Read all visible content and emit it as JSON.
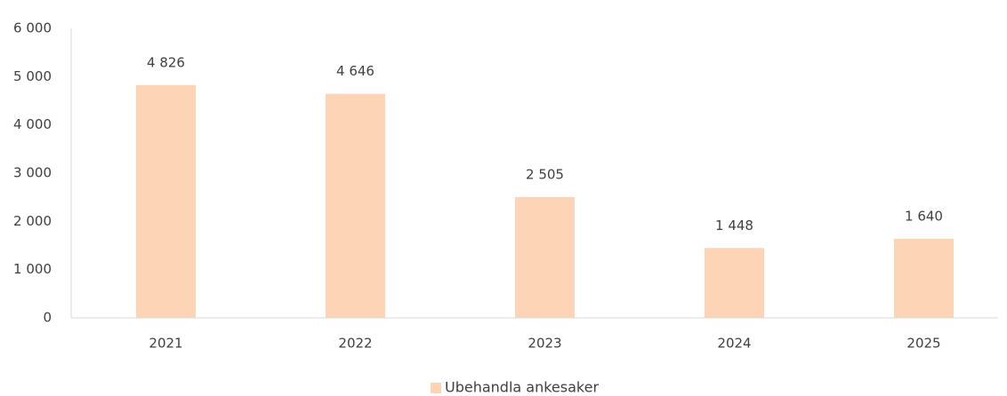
{
  "chart_data": {
    "type": "bar",
    "categories": [
      "2021",
      "2022",
      "2023",
      "2024",
      "2025"
    ],
    "series": [
      {
        "name": "Ubehandla ankesaker",
        "color": "#fdd5b6",
        "values": [
          4826,
          4646,
          2505,
          1448,
          1640
        ],
        "value_labels": [
          "4 826",
          "4 646",
          "2 505",
          "1 448",
          "1 640"
        ]
      }
    ],
    "ylim": [
      0,
      6000
    ],
    "yticks": [
      0,
      {
        "value": 1000,
        "label": "1 000"
      },
      {
        "value": 2000,
        "label": "2 000"
      },
      {
        "value": 3000,
        "label": "3 000"
      },
      {
        "value": 4000,
        "label": "4 000"
      },
      {
        "value": 5000,
        "label": "5 000"
      },
      {
        "value": 6000,
        "label": "6 000"
      }
    ],
    "grid": false,
    "legend": "bottom"
  }
}
